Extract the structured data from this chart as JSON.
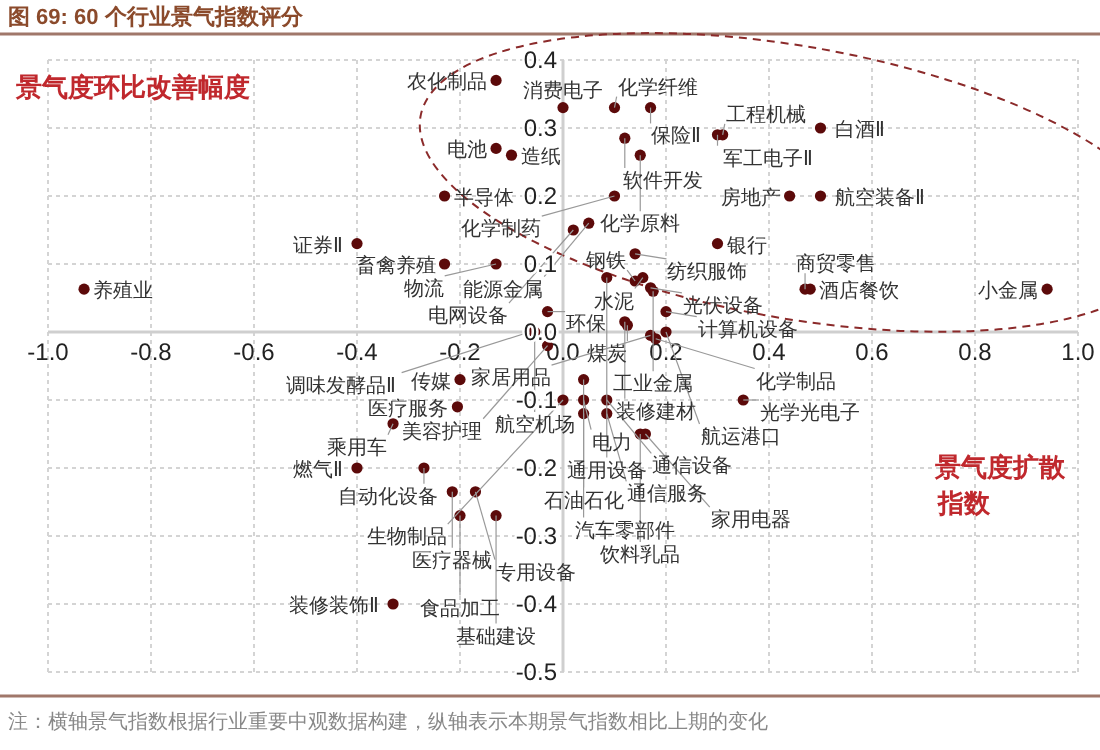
{
  "chart_data": {
    "type": "scatter",
    "title": "图 69: 60 个行业景气指数评分",
    "xlabel": "景气度扩散指数",
    "ylabel": "景气度环比改善幅度",
    "annotations": [
      "注：横轴景气指数根据行业重要中观数据构建，纵轴表示本期景气指数相比上期的变化"
    ],
    "xlim": [
      -1.0,
      1.0
    ],
    "xticks": [
      {
        "value": -1.0,
        "label": "-1.0"
      },
      {
        "value": -0.8,
        "label": "-0.8"
      },
      {
        "value": -0.6,
        "label": "-0.6"
      },
      {
        "value": -0.4,
        "label": "-0.4"
      },
      {
        "value": -0.2,
        "label": "-0.2"
      },
      {
        "value": 0,
        "label": "0.0"
      },
      {
        "value": 0.2,
        "label": "0.2"
      },
      {
        "value": 0.4,
        "label": "0.4"
      },
      {
        "value": 0.6,
        "label": "0.6"
      },
      {
        "value": 0.8,
        "label": "0.8"
      },
      {
        "value": 1.0,
        "label": "1.0"
      }
    ],
    "ylim": [
      -0.5,
      0.4
    ],
    "yticks": [
      -0.5,
      -0.4,
      -0.3,
      -0.2,
      -0.1,
      {
        "value": 0,
        "label": "0.0"
      },
      0.1,
      0.2,
      0.3,
      0.4
    ],
    "grid": true,
    "marker": "circle",
    "series": [
      {
        "color": "#5c0a0a",
        "x": [
          -0.93,
          -0.23,
          -0.13,
          0.0,
          0.1,
          0.17,
          -0.13,
          -0.1,
          0.12,
          0.15,
          0.3,
          0.31,
          0.5,
          0.1,
          0.05,
          0.44,
          0.5,
          0.02,
          0.3,
          0.14,
          -0.13,
          -0.23,
          -0.4,
          0.155,
          0.14,
          0.17,
          0.175,
          0.085,
          0.2,
          -0.03,
          0.12,
          0.125,
          0.2,
          0.18,
          0.17,
          -0.065,
          -0.055,
          -0.03,
          -0.2,
          0.94,
          0.48,
          0.47,
          0.04,
          0.35,
          0.04,
          0.085,
          0.085,
          0.04,
          0.15,
          0.16,
          0.0,
          -0.205,
          -0.33,
          -0.4,
          -0.27,
          -0.17,
          -0.215,
          -0.2,
          -0.13,
          -0.33
        ],
        "values": [
          0.063,
          0.2,
          0.37,
          0.33,
          0.33,
          0.33,
          0.27,
          0.26,
          0.285,
          0.26,
          0.29,
          0.29,
          0.3,
          0.2,
          0.16,
          0.2,
          0.2,
          0.15,
          0.13,
          0.115,
          0.1,
          0.1,
          0.13,
          0.08,
          0.075,
          0.065,
          0.06,
          0.08,
          0.03,
          0.03,
          0.015,
          0.01,
          0.0,
          -0.01,
          -0.005,
          0.0,
          0.0,
          -0.02,
          -0.07,
          0.063,
          0.063,
          0.063,
          -0.07,
          -0.1,
          -0.1,
          -0.1,
          -0.12,
          -0.12,
          -0.15,
          -0.15,
          -0.1,
          -0.11,
          -0.135,
          -0.2,
          -0.2,
          -0.235,
          -0.235,
          -0.27,
          -0.27,
          -0.4
        ],
        "value_labels": [
          "养殖业",
          "半导体",
          "农化制品",
          "消费电子",
          "化学纤维",
          "保险Ⅱ",
          "电池",
          "造纸",
          "软件开发",
          "化学原料",
          "军工电子Ⅱ",
          "工程机械",
          "白酒Ⅱ",
          "化学制药",
          "能源金属",
          "房地产",
          "航空装备Ⅱ",
          "电网设备",
          "银行",
          "纺织服饰",
          "物流",
          "畜禽养殖",
          "证券Ⅱ",
          "水泥",
          "钢铁",
          "光伏设备",
          "工业金属",
          "通用设备",
          "计算机设备",
          "环保",
          "装修建材",
          "煤炭",
          "航运港口",
          "化学制品",
          "家居用品",
          "调味发酵品Ⅱ",
          "航空机场",
          "美容护理",
          "传媒",
          "小金属",
          "酒店餐饮",
          "商贸零售",
          "石油石化",
          "光学光电子",
          "电力",
          "通信设备",
          "通信服务",
          "汽车零部件",
          "饮料乳品",
          "家用电器",
          "生物制品",
          "医疗服务",
          "乘用车",
          "燃气Ⅱ",
          "自动化设备",
          "专用设备",
          "医疗器械",
          "食品加工",
          "基础建设",
          "装修装饰Ⅱ"
        ]
      }
    ]
  }
}
